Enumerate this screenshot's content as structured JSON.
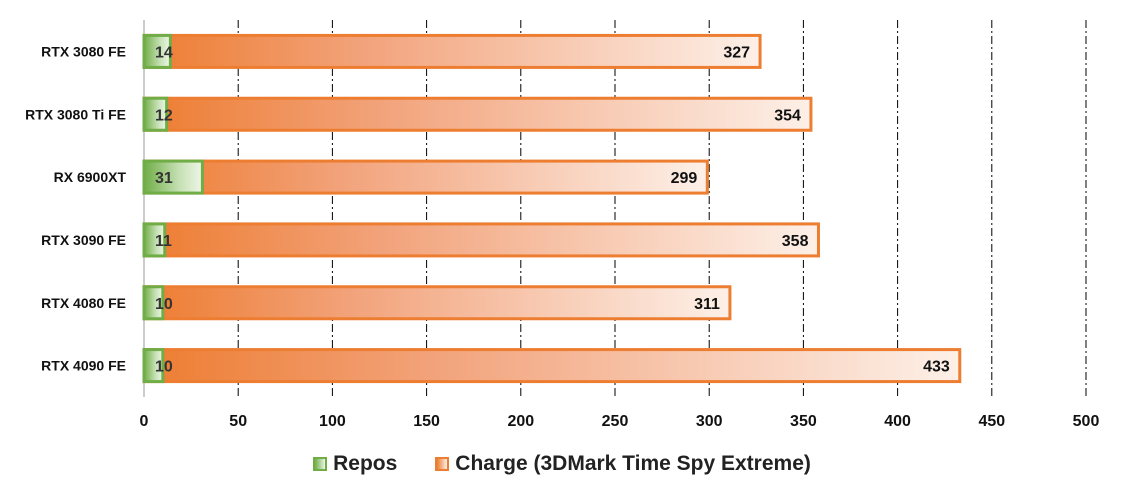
{
  "chart_data": {
    "type": "bar",
    "orientation": "horizontal",
    "stacking": "overlay",
    "categories": [
      "RTX 3080 FE",
      "RTX 3080 Ti FE",
      "RX 6900XT",
      "RTX 3090 FE",
      "RTX 4080 FE",
      "RTX 4090 FE"
    ],
    "series": [
      {
        "name": "Repos",
        "values": [
          14,
          12,
          31,
          11,
          10,
          10
        ],
        "color": "#70AD47"
      },
      {
        "name": "Charge (3DMark Time Spy Extreme)",
        "values": [
          327,
          354,
          299,
          358,
          311,
          433
        ],
        "color": "#ED7D31"
      }
    ],
    "xlim": [
      0,
      500
    ],
    "x_ticks": [
      "0",
      "50",
      "100",
      "150",
      "200",
      "250",
      "300",
      "350",
      "400",
      "450",
      "500"
    ],
    "grid": "vertical dash-dot",
    "legend": "bottom-center",
    "title": "",
    "xlabel": "",
    "ylabel": ""
  }
}
